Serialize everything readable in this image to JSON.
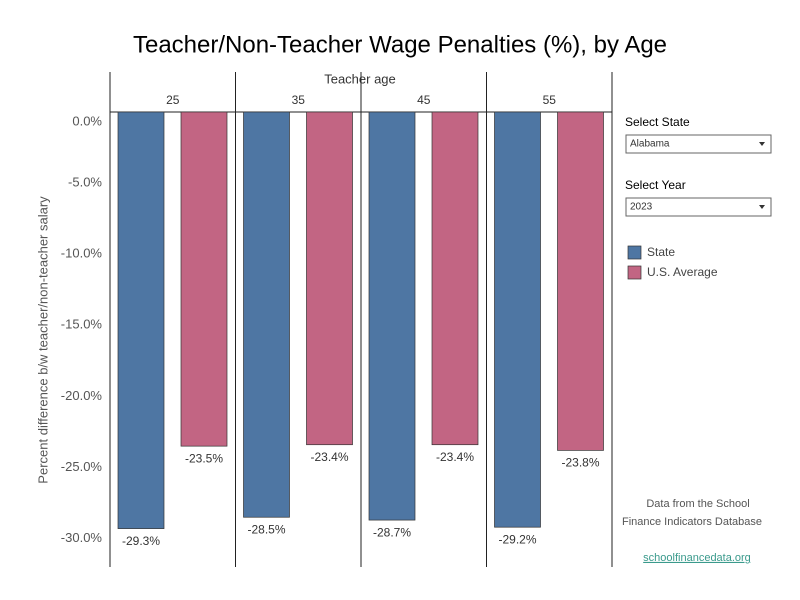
{
  "chart_data": {
    "type": "bar",
    "title": "Teacher/Non-Teacher Wage Penalties (%), by Age",
    "x_label": "Teacher age",
    "y_label": "Percent difference b/w teacher/non-teacher salary",
    "categories": [
      "25",
      "35",
      "45",
      "55"
    ],
    "series": [
      {
        "name": "State",
        "color": "#4e76a3",
        "values": [
          -29.3,
          -28.5,
          -28.7,
          -29.2
        ],
        "value_labels": [
          "-29.3%",
          "-28.5%",
          "-28.7%",
          "-29.2%"
        ]
      },
      {
        "name": "U.S. Average",
        "color": "#c26583",
        "values": [
          -23.5,
          -23.4,
          -23.4,
          -23.8
        ],
        "value_labels": [
          "-23.5%",
          "-23.4%",
          "-23.4%",
          "-23.8%"
        ]
      }
    ],
    "ylim": [
      -32,
      0
    ],
    "yticks": [
      {
        "value": 0,
        "label": "0.0%"
      },
      {
        "value": -5,
        "label": "-5.0%"
      },
      {
        "value": -10,
        "label": "-10.0%"
      },
      {
        "value": -15,
        "label": "-15.0%"
      },
      {
        "value": -20,
        "label": "-20.0%"
      },
      {
        "value": -25,
        "label": "-25.0%"
      },
      {
        "value": -30,
        "label": "-30.0%"
      }
    ],
    "grid": false
  },
  "controls": [
    {
      "label": "Select State",
      "value": "Alabama"
    },
    {
      "label": "Select Year",
      "value": "2023"
    }
  ],
  "source": {
    "lines": [
      "Data from the School",
      "Finance Indicators Database"
    ],
    "link": "schoolfinancedata.org"
  }
}
